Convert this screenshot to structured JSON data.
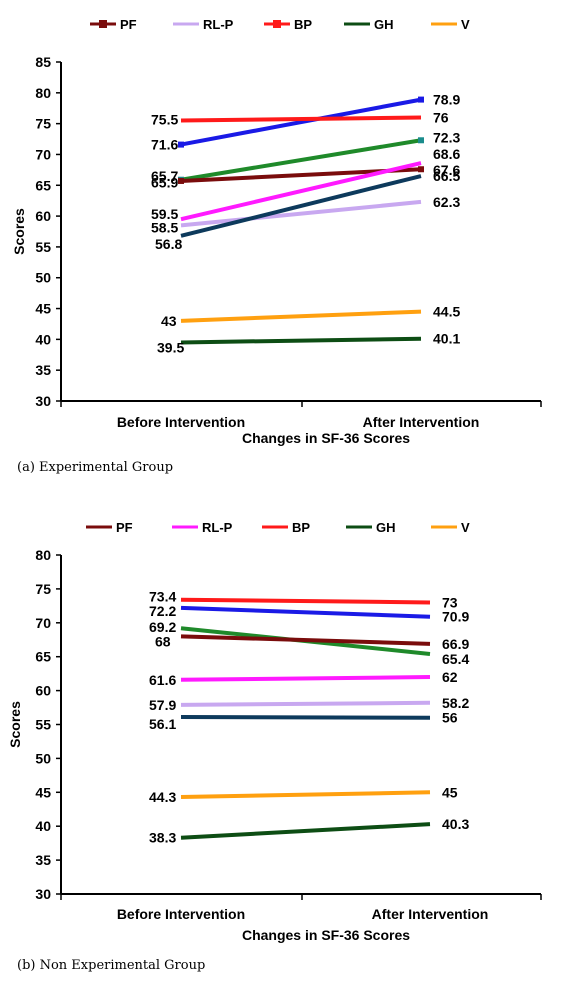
{
  "chart_data": [
    {
      "type": "line",
      "caption": "(a) Experimental Group",
      "categories": [
        "Before Intervention",
        "After Intervention"
      ],
      "xlabel": "Changes in SF-36 Scores",
      "ylabel": "Scores",
      "ylim": [
        30,
        85
      ],
      "ytick_step": 5,
      "legend_position": "top",
      "legend": [
        {
          "name": "PF",
          "color": "#7a0c0c",
          "marker": true
        },
        {
          "name": "RL-P",
          "color": "#c8a8f0",
          "marker": false
        },
        {
          "name": "BP",
          "color": "#ff1a1a",
          "marker": true
        },
        {
          "name": "GH",
          "color": "#0d4d14",
          "marker": false
        },
        {
          "name": "V",
          "color": "#ffa010",
          "marker": false
        }
      ],
      "series": [
        {
          "color": "#1a1ae6",
          "values": [
            71.6,
            78.9
          ],
          "labels": [
            "71.6",
            "78.9"
          ],
          "marker": true
        },
        {
          "color": "#ff1a1a",
          "values": [
            75.5,
            76.0
          ],
          "labels": [
            "75.5",
            "76"
          ],
          "marker": false
        },
        {
          "color": "#1f8a2a",
          "values": [
            65.9,
            72.3
          ],
          "labels": [
            "65.9",
            "72.3"
          ],
          "marker": true,
          "marker_color": "#1a8c8c"
        },
        {
          "color": "#7a0c0c",
          "values": [
            65.7,
            67.6
          ],
          "labels": [
            "65.7",
            "67.6"
          ],
          "marker": true
        },
        {
          "color": "#ff1aff",
          "values": [
            59.5,
            68.6
          ],
          "labels": [
            "59.5",
            "68.6"
          ],
          "marker": false
        },
        {
          "color": "#c8a8f0",
          "values": [
            58.5,
            62.3
          ],
          "labels": [
            "58.5",
            "62.3"
          ],
          "marker": false
        },
        {
          "color": "#0d3a5c",
          "values": [
            56.8,
            66.5
          ],
          "labels": [
            "56.8",
            "66.5"
          ],
          "marker": false
        },
        {
          "color": "#ffa010",
          "values": [
            43.0,
            44.5
          ],
          "labels": [
            "43",
            "44.5"
          ],
          "marker": false
        },
        {
          "color": "#0d4d14",
          "values": [
            39.5,
            40.1
          ],
          "labels": [
            "39.5",
            "40.1"
          ],
          "marker": false
        }
      ]
    },
    {
      "type": "line",
      "caption": "(b) Non Experimental Group",
      "categories": [
        "Before Intervention",
        "After Intervention"
      ],
      "xlabel": "Changes in SF-36 Scores",
      "ylabel": "Scores",
      "ylim": [
        30,
        80
      ],
      "ytick_step": 5,
      "legend_position": "top",
      "legend": [
        {
          "name": "PF",
          "color": "#7a0c0c",
          "marker": false
        },
        {
          "name": "RL-P",
          "color": "#ff1aff",
          "marker": false
        },
        {
          "name": "BP",
          "color": "#ff1a1a",
          "marker": false
        },
        {
          "name": "GH",
          "color": "#0d4d14",
          "marker": false
        },
        {
          "name": "V",
          "color": "#ffa010",
          "marker": false
        }
      ],
      "series": [
        {
          "color": "#ff1a1a",
          "values": [
            73.4,
            73.0
          ],
          "labels": [
            "73.4",
            "73"
          ],
          "marker": false
        },
        {
          "color": "#1a1ae6",
          "values": [
            72.2,
            70.9
          ],
          "labels": [
            "72.2",
            "70.9"
          ],
          "marker": false
        },
        {
          "color": "#1f8a2a",
          "values": [
            69.2,
            65.4
          ],
          "labels": [
            "69.2",
            "65.4"
          ],
          "marker": false
        },
        {
          "color": "#7a0c0c",
          "values": [
            68.0,
            66.9
          ],
          "labels": [
            "68",
            "66.9"
          ],
          "marker": false
        },
        {
          "color": "#ff1aff",
          "values": [
            61.6,
            62.0
          ],
          "labels": [
            "61.6",
            "62"
          ],
          "marker": false
        },
        {
          "color": "#c8a8f0",
          "values": [
            57.9,
            58.2
          ],
          "labels": [
            "57.9",
            "58.2"
          ],
          "marker": false
        },
        {
          "color": "#0d3a5c",
          "values": [
            56.1,
            56.0
          ],
          "labels": [
            "56.1",
            "56"
          ],
          "marker": false
        },
        {
          "color": "#ffa010",
          "values": [
            44.3,
            45.0
          ],
          "labels": [
            "44.3",
            "45"
          ],
          "marker": false
        },
        {
          "color": "#0d4d14",
          "values": [
            38.3,
            40.3
          ],
          "labels": [
            "38.3",
            "40.3"
          ],
          "marker": false
        }
      ]
    }
  ]
}
